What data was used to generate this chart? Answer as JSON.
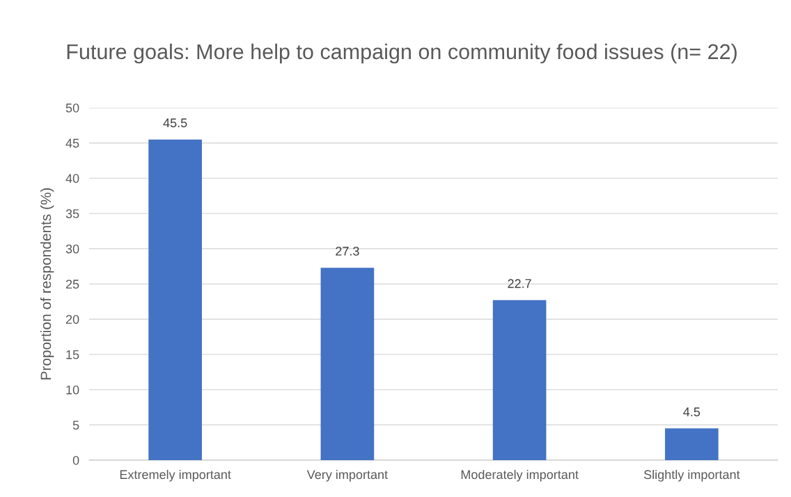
{
  "chart_data": {
    "type": "bar",
    "title": "Future goals: More help to campaign on community food issues (n= 22)",
    "ylabel": "Proportion of respondents (%)",
    "categories": [
      "Extremely important",
      "Very important",
      "Moderately important",
      "Slightly important"
    ],
    "values": [
      45.5,
      27.3,
      22.7,
      4.5
    ],
    "color": "#4472c4",
    "ylim": [
      0,
      50
    ],
    "yticks": [
      0,
      5,
      10,
      15,
      20,
      25,
      30,
      35,
      40,
      45,
      50
    ],
    "grid": "y",
    "data_labels": true
  }
}
